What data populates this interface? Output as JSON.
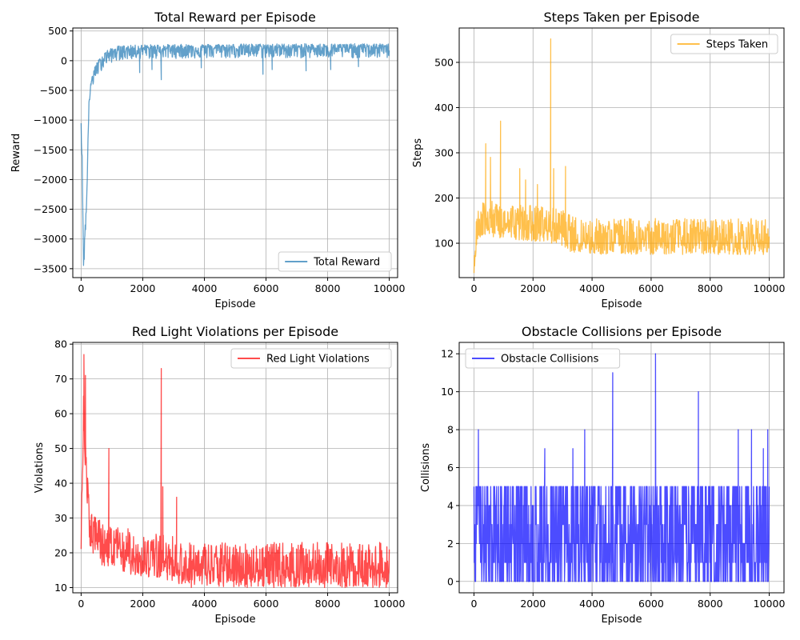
{
  "chart_data": [
    {
      "type": "line",
      "title": "Total Reward per Episode",
      "xlabel": "Episode",
      "ylabel": "Reward",
      "xlim": [
        -270,
        10270
      ],
      "ylim": [
        -3650,
        550
      ],
      "xticks": [
        0,
        2000,
        4000,
        6000,
        8000,
        10000
      ],
      "yticks": [
        -3500,
        -3000,
        -2500,
        -2000,
        -1500,
        -1000,
        -500,
        0,
        500
      ],
      "grid": true,
      "legend_position": "lower-right",
      "series": [
        {
          "name": "Total Reward",
          "color": "#1f77b4",
          "alpha": 0.7,
          "pattern": {
            "points": [
              [
                0,
                -1000
              ],
              [
                40,
                -1800
              ],
              [
                80,
                -3500
              ],
              [
                120,
                -2900
              ],
              [
                180,
                -2400
              ],
              [
                250,
                -700
              ],
              [
                350,
                -300
              ],
              [
                500,
                -100
              ],
              [
                800,
                100
              ],
              [
                1200,
                180
              ],
              [
                2000,
                200
              ],
              [
                4000,
                210
              ],
              [
                6000,
                215
              ],
              [
                8000,
                215
              ],
              [
                10000,
                215
              ]
            ],
            "noise_high": 70,
            "noise_low": 170,
            "dips": [
              [
                2600,
                -320
              ],
              [
                2300,
                -150
              ],
              [
                1900,
                -200
              ],
              [
                3900,
                -120
              ],
              [
                5900,
                -230
              ],
              [
                6200,
                -150
              ],
              [
                7300,
                -170
              ],
              [
                8100,
                -150
              ],
              [
                9000,
                -100
              ]
            ]
          }
        }
      ]
    },
    {
      "type": "line",
      "title": "Steps Taken per Episode",
      "xlabel": "Episode",
      "ylabel": "Steps",
      "xlim": [
        -500,
        10500
      ],
      "ylim": [
        24,
        576
      ],
      "xticks": [
        0,
        2000,
        4000,
        6000,
        8000,
        10000
      ],
      "yticks": [
        100,
        200,
        300,
        400,
        500
      ],
      "grid": true,
      "legend_position": "upper-right",
      "series": [
        {
          "name": "Steps Taken",
          "color": "#ffa500",
          "alpha": 0.7,
          "pattern": {
            "points": [
              [
                0,
                60
              ],
              [
                100,
                130
              ],
              [
                300,
                145
              ],
              [
                1000,
                140
              ],
              [
                2000,
                135
              ],
              [
                3000,
                125
              ],
              [
                3300,
                110
              ],
              [
                4000,
                105
              ],
              [
                6000,
                105
              ],
              [
                8000,
                105
              ],
              [
                10000,
                105
              ]
            ],
            "noise_high": 50,
            "noise_low": 30,
            "spikes": [
              [
                400,
                320
              ],
              [
                560,
                290
              ],
              [
                900,
                370
              ],
              [
                1550,
                265
              ],
              [
                1750,
                240
              ],
              [
                2150,
                230
              ],
              [
                2600,
                552
              ],
              [
                2700,
                265
              ],
              [
                3100,
                270
              ]
            ]
          }
        }
      ]
    },
    {
      "type": "line",
      "title": "Red Light Violations per Episode",
      "xlabel": "Episode",
      "ylabel": "Violations",
      "xlim": [
        -270,
        10270
      ],
      "ylim": [
        8.5,
        80.5
      ],
      "xticks": [
        0,
        2000,
        4000,
        6000,
        8000,
        10000
      ],
      "yticks": [
        10,
        20,
        30,
        40,
        50,
        60,
        70,
        80
      ],
      "grid": true,
      "legend_position": "upper-right",
      "series": [
        {
          "name": "Red Light Violations",
          "color": "#ff0000",
          "alpha": 0.7,
          "pattern": {
            "points": [
              [
                0,
                25
              ],
              [
                80,
                60
              ],
              [
                150,
                45
              ],
              [
                250,
                28
              ],
              [
                500,
                22
              ],
              [
                1000,
                20
              ],
              [
                2000,
                18
              ],
              [
                3000,
                17
              ],
              [
                3300,
                15
              ],
              [
                4000,
                15
              ],
              [
                6000,
                15
              ],
              [
                8000,
                15
              ],
              [
                10000,
                15
              ]
            ],
            "noise_high": 8,
            "noise_low": 5,
            "spikes": [
              [
                90,
                77
              ],
              [
                140,
                71
              ],
              [
                900,
                50
              ],
              [
                2600,
                73
              ],
              [
                2650,
                39
              ],
              [
                3100,
                36
              ],
              [
                7000,
                21
              ],
              [
                5800,
                21
              ]
            ]
          }
        }
      ]
    },
    {
      "type": "line",
      "title": "Obstacle Collisions per Episode",
      "xlabel": "Episode",
      "ylabel": "Collisions",
      "xlim": [
        -500,
        10500
      ],
      "ylim": [
        -0.6,
        12.6
      ],
      "xticks": [
        0,
        2000,
        4000,
        6000,
        8000,
        10000
      ],
      "yticks": [
        0,
        2,
        4,
        6,
        8,
        10,
        12
      ],
      "grid": true,
      "legend_position": "upper-left",
      "series": [
        {
          "name": "Obstacle Collisions",
          "color": "#0000ff",
          "alpha": 0.7,
          "pattern": {
            "points": [
              [
                0,
                2
              ],
              [
                10000,
                2
              ]
            ],
            "noise_high": 3,
            "noise_low": 2,
            "spikes": [
              [
                150,
                8
              ],
              [
                2400,
                7
              ],
              [
                3350,
                7
              ],
              [
                3750,
                8
              ],
              [
                4700,
                11
              ],
              [
                6150,
                12
              ],
              [
                7600,
                10
              ],
              [
                8950,
                8
              ],
              [
                9400,
                8
              ],
              [
                9800,
                7
              ],
              [
                9950,
                8
              ]
            ]
          }
        }
      ]
    }
  ]
}
